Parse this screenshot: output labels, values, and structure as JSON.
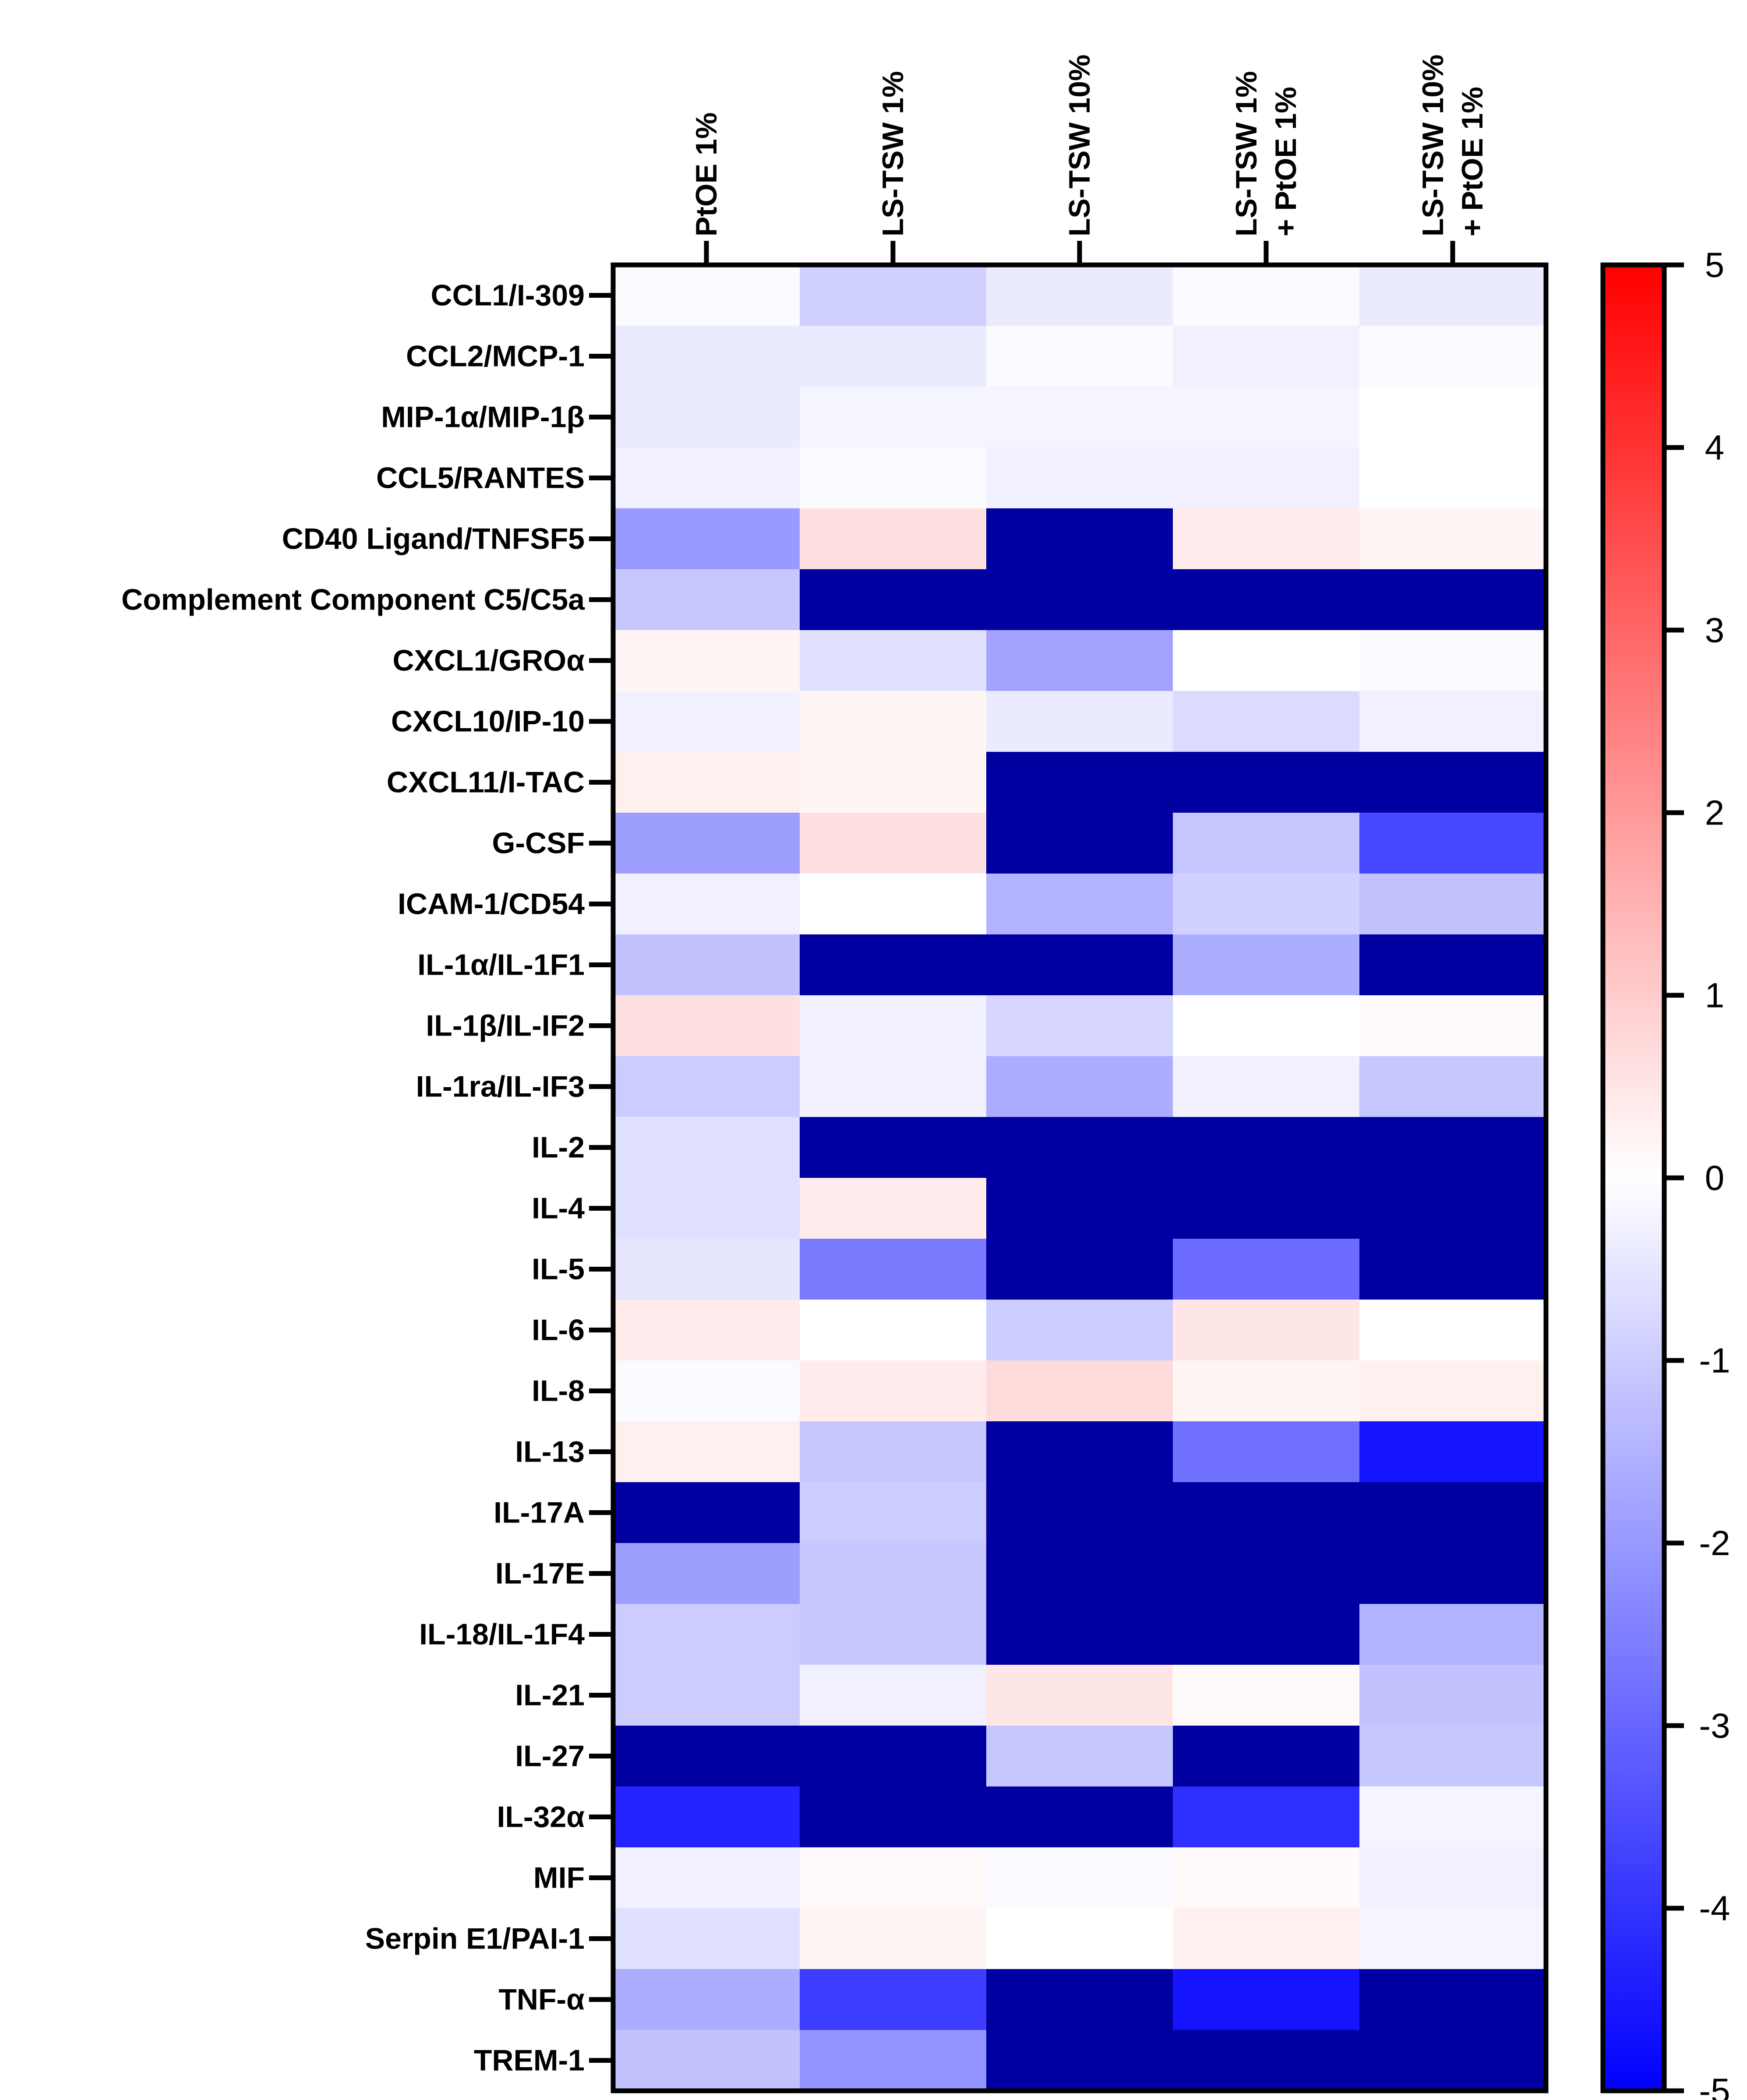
{
  "chart_data": {
    "type": "heatmap",
    "title": "",
    "columns": [
      "PtOE 1%",
      "LS-TSW 1%",
      "LS-TSW 10%",
      "LS-TSW 1%\n+ PtOE 1%",
      "LS-TSW 10%\n+ PtOE 1%"
    ],
    "rows": [
      "CCL1/I-309",
      "CCL2/MCP-1",
      "MIP-1α/MIP-1β",
      "CCL5/RANTES",
      "CD40 Ligand/TNFSF5",
      "Complement Component C5/C5a",
      "CXCL1/GROα",
      "CXCL10/IP-10",
      "CXCL11/I-TAC",
      "G-CSF",
      "ICAM-1/CD54",
      "IL-1α/IL-1F1",
      "IL-1β/IL-IF2",
      "IL-1ra/IL-IF3",
      "IL-2",
      "IL-4",
      "IL-5",
      "IL-6",
      "IL-8",
      "IL-13",
      "IL-17A",
      "IL-17E",
      "IL-18/IL-1F4",
      "IL-21",
      "IL-27",
      "IL-32α",
      "MIF",
      "Serpin E1/PAI-1",
      "TNF-α",
      "TREM-1"
    ],
    "values": [
      [
        -0.1,
        -0.9,
        -0.4,
        -0.1,
        -0.4
      ],
      [
        -0.4,
        -0.4,
        -0.1,
        -0.3,
        -0.1
      ],
      [
        -0.4,
        -0.2,
        -0.2,
        -0.2,
        0.0
      ],
      [
        -0.3,
        -0.1,
        -0.3,
        -0.3,
        0.0
      ],
      [
        -2.0,
        0.6,
        -6,
        0.4,
        0.2
      ],
      [
        -1.1,
        -6,
        -6,
        -6,
        -6
      ],
      [
        0.2,
        -0.6,
        -1.8,
        0.0,
        -0.1
      ],
      [
        -0.3,
        0.2,
        -0.4,
        -0.7,
        -0.3
      ],
      [
        0.3,
        0.2,
        -6,
        -6,
        -6
      ],
      [
        -1.9,
        0.6,
        -6,
        -1.1,
        -3.6
      ],
      [
        -0.3,
        0.0,
        -1.5,
        -0.9,
        -1.2
      ],
      [
        -1.2,
        -6,
        -6,
        -1.6,
        -6
      ],
      [
        0.6,
        -0.3,
        -0.8,
        0.0,
        0.1
      ],
      [
        -1.0,
        -0.3,
        -1.6,
        -0.3,
        -1.1
      ],
      [
        -0.6,
        -6,
        -6,
        -6,
        -6
      ],
      [
        -0.6,
        0.4,
        -6,
        -6,
        -6
      ],
      [
        -0.5,
        -2.6,
        -6,
        -2.9,
        -6
      ],
      [
        0.4,
        0.0,
        -1.0,
        0.5,
        0.0
      ],
      [
        -0.1,
        0.4,
        0.7,
        0.2,
        0.3
      ],
      [
        0.3,
        -1.1,
        -6,
        -2.8,
        -4.6
      ],
      [
        -6,
        -1.0,
        -6,
        -6,
        -6
      ],
      [
        -1.9,
        -1.1,
        -6,
        -6,
        -6
      ],
      [
        -1.0,
        -1.1,
        -6,
        -6,
        -1.5
      ],
      [
        -1.0,
        -0.3,
        0.5,
        0.1,
        -1.2
      ],
      [
        -6,
        -6,
        -1.1,
        -6,
        -1.1
      ],
      [
        -4.3,
        -6,
        -6,
        -4.1,
        -0.2
      ],
      [
        -0.3,
        0.1,
        -0.1,
        0.1,
        -0.3
      ],
      [
        -0.6,
        0.2,
        0.0,
        0.3,
        -0.2
      ],
      [
        -1.6,
        -3.8,
        -6,
        -4.6,
        -6
      ],
      [
        -1.2,
        -2.1,
        -6,
        -6,
        -6
      ]
    ],
    "colorbar": {
      "min": -5,
      "max": 5,
      "ticks": [
        5,
        4,
        3,
        2,
        1,
        0,
        -1,
        -2,
        -3,
        -4,
        -5
      ],
      "low_color": "#0000ff",
      "mid_color": "#ffffff",
      "high_color": "#ff0000",
      "under_color": "#0000a0"
    }
  }
}
